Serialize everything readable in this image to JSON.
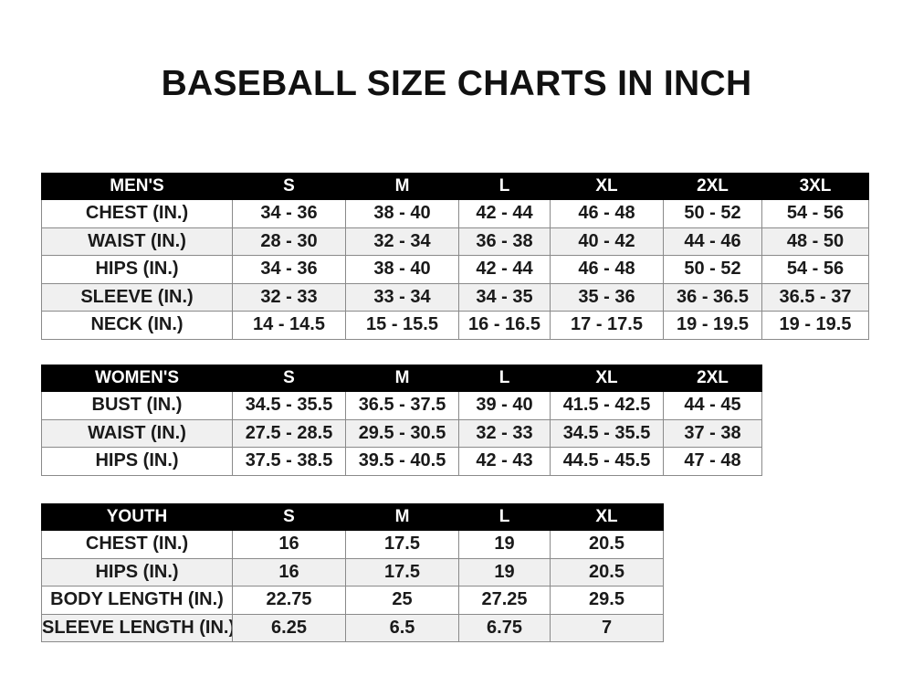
{
  "title": "BASEBALL SIZE CHARTS IN INCH",
  "tables": [
    {
      "id": "men",
      "headers": [
        "MEN'S",
        "S",
        "M",
        "L",
        "XL",
        "2XL",
        "3XL"
      ],
      "rows": [
        [
          "CHEST (IN.)",
          "34 - 36",
          "38 - 40",
          "42 - 44",
          "46 - 48",
          "50 - 52",
          "54 - 56"
        ],
        [
          "WAIST (IN.)",
          "28 - 30",
          "32 - 34",
          "36 - 38",
          "40 - 42",
          "44 - 46",
          "48 - 50"
        ],
        [
          "HIPS (IN.)",
          "34 - 36",
          "38 - 40",
          "42 - 44",
          "46 - 48",
          "50 - 52",
          "54 - 56"
        ],
        [
          "SLEEVE (IN.)",
          "32 - 33",
          "33 - 34",
          "34 - 35",
          "35 - 36",
          "36 - 36.5",
          "36.5 - 37"
        ],
        [
          "NECK (IN.)",
          "14 - 14.5",
          "15 - 15.5",
          "16 - 16.5",
          "17 - 17.5",
          "19 - 19.5",
          "19 - 19.5"
        ]
      ]
    },
    {
      "id": "women",
      "headers": [
        "WOMEN'S",
        "S",
        "M",
        "L",
        "XL",
        "2XL"
      ],
      "rows": [
        [
          "BUST (IN.)",
          "34.5 - 35.5",
          "36.5 - 37.5",
          "39 - 40",
          "41.5 - 42.5",
          "44 - 45"
        ],
        [
          "WAIST (IN.)",
          "27.5 - 28.5",
          "29.5 - 30.5",
          "32 - 33",
          "34.5 - 35.5",
          "37 - 38"
        ],
        [
          "HIPS (IN.)",
          "37.5 - 38.5",
          "39.5 - 40.5",
          "42 - 43",
          "44.5 - 45.5",
          "47 - 48"
        ]
      ]
    },
    {
      "id": "youth",
      "headers": [
        "YOUTH",
        "S",
        "M",
        "L",
        "XL"
      ],
      "rows": [
        [
          "CHEST (IN.)",
          "16",
          "17.5",
          "19",
          "20.5"
        ],
        [
          "HIPS (IN.)",
          "16",
          "17.5",
          "19",
          "20.5"
        ],
        [
          "BODY LENGTH (IN.)",
          "22.75",
          "25",
          "27.25",
          "29.5"
        ],
        [
          "SLEEVE LENGTH (IN.)",
          "6.25",
          "6.5",
          "6.75",
          "7"
        ]
      ]
    }
  ]
}
